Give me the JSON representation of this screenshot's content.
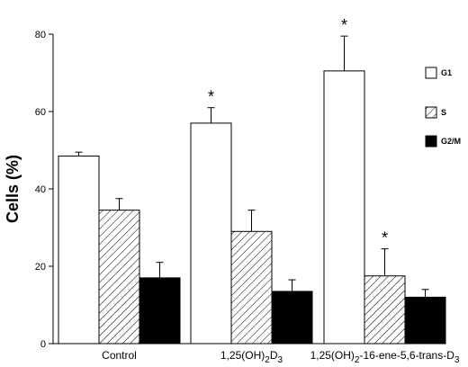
{
  "chart_data": {
    "type": "bar",
    "title": "",
    "xlabel": "",
    "ylabel": "Cells (%)",
    "ylim": [
      0,
      80
    ],
    "yticks": [
      "0",
      "20",
      "40",
      "60",
      "80"
    ],
    "grid": false,
    "legend_position": "right",
    "categories": [
      {
        "base": "Control",
        "parts": []
      },
      {
        "base": "1,25(OH)",
        "parts": [
          {
            "t": "1,25(OH)",
            "sub": false
          },
          {
            "t": "2",
            "sub": true
          },
          {
            "t": "D",
            "sub": false
          },
          {
            "t": "3",
            "sub": true
          }
        ]
      },
      {
        "base": "1,25(OH)2-16-ene-5,6-trans-D3",
        "parts": [
          {
            "t": "1,25(OH)",
            "sub": false
          },
          {
            "t": "2",
            "sub": true
          },
          {
            "t": "-16-ene-5,6-trans-D",
            "sub": false
          },
          {
            "t": "3",
            "sub": true
          }
        ]
      }
    ],
    "series": [
      {
        "name": "G1",
        "fill": "white",
        "values": [
          48.5,
          57,
          70.5
        ],
        "errors": [
          1,
          4,
          9
        ],
        "significant": [
          false,
          true,
          true
        ]
      },
      {
        "name": "S",
        "fill": "hatch",
        "values": [
          34.5,
          29,
          17.5
        ],
        "errors": [
          3,
          5.5,
          7
        ],
        "significant": [
          false,
          false,
          true
        ]
      },
      {
        "name": "G2/M",
        "fill": "black",
        "values": [
          17,
          13.5,
          12
        ],
        "errors": [
          4,
          3,
          2
        ],
        "significant": [
          false,
          false,
          false
        ]
      }
    ],
    "significance_marker": "*"
  }
}
